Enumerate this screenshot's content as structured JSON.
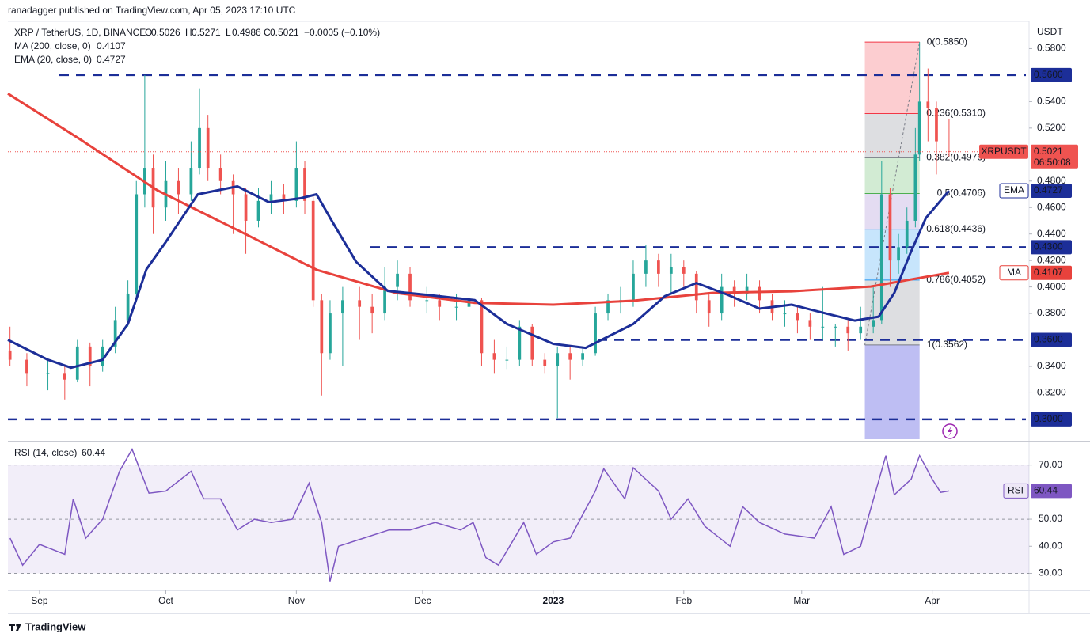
{
  "header": {
    "publisher": "ranadagger published on TradingView.com, Apr 05, 2023 17:10 UTC",
    "footer": "TradingView"
  },
  "chart_data": {
    "type": "candlestick",
    "symbol": "XRP / TetherUS, 1D, BINANCE",
    "ohlc_letters": [
      "O",
      "H",
      "L",
      "C"
    ],
    "change": "−0.0005 (−0.10%)",
    "ticker": "XRPUSDT",
    "countdown": "06:50:08",
    "y_axis_title": "USDT",
    "up_color": "#26a69a",
    "down_color": "#ef5350",
    "xlim": [
      -129.5,
      113
    ],
    "xticks": [
      {
        "value": -122,
        "label": "Sep"
      },
      {
        "value": -92,
        "label": "Oct"
      },
      {
        "value": -61,
        "label": "Nov"
      },
      {
        "value": -31,
        "label": "Dec"
      },
      {
        "value": 0,
        "label": "2023"
      },
      {
        "value": 31,
        "label": "Feb"
      },
      {
        "value": 59,
        "label": "Mar"
      },
      {
        "value": 90,
        "label": "Apr"
      }
    ],
    "ylim": [
      0.285,
      0.6
    ],
    "yticks": [
      {
        "value": 0.58,
        "label": "0.5800"
      },
      {
        "value": 0.54,
        "label": "0.5400"
      },
      {
        "value": 0.52,
        "label": "0.5200"
      },
      {
        "value": 0.48,
        "label": "0.4800"
      },
      {
        "value": 0.46,
        "label": "0.4600"
      },
      {
        "value": 0.44,
        "label": "0.4400"
      },
      {
        "value": 0.42,
        "label": "0.4200"
      },
      {
        "value": 0.4,
        "label": "0.4000"
      },
      {
        "value": 0.38,
        "label": "0.3800"
      },
      {
        "value": 0.34,
        "label": "0.3400"
      },
      {
        "value": 0.32,
        "label": "0.3200"
      }
    ],
    "candles": [
      {
        "x": -129,
        "open": 0.352,
        "high": 0.37,
        "low": 0.34,
        "close": 0.345
      },
      {
        "x": -125,
        "open": 0.345,
        "high": 0.35,
        "low": 0.325,
        "close": 0.335
      },
      {
        "x": -120,
        "open": 0.335,
        "high": 0.345,
        "low": 0.322,
        "close": 0.335
      },
      {
        "x": -116,
        "open": 0.335,
        "high": 0.34,
        "low": 0.315,
        "close": 0.33
      },
      {
        "x": -113,
        "open": 0.33,
        "high": 0.36,
        "low": 0.328,
        "close": 0.355
      },
      {
        "x": -110,
        "open": 0.355,
        "high": 0.358,
        "low": 0.325,
        "close": 0.34
      },
      {
        "x": -107,
        "open": 0.34,
        "high": 0.36,
        "low": 0.336,
        "close": 0.355
      },
      {
        "x": -104,
        "open": 0.355,
        "high": 0.385,
        "low": 0.35,
        "close": 0.375
      },
      {
        "x": -101,
        "open": 0.375,
        "high": 0.405,
        "low": 0.37,
        "close": 0.395
      },
      {
        "x": -99,
        "open": 0.395,
        "high": 0.48,
        "low": 0.39,
        "close": 0.47
      },
      {
        "x": -97,
        "open": 0.47,
        "high": 0.56,
        "low": 0.46,
        "close": 0.49
      },
      {
        "x": -95,
        "open": 0.49,
        "high": 0.5,
        "low": 0.44,
        "close": 0.46
      },
      {
        "x": -92,
        "open": 0.46,
        "high": 0.495,
        "low": 0.45,
        "close": 0.48
      },
      {
        "x": -89,
        "open": 0.48,
        "high": 0.49,
        "low": 0.455,
        "close": 0.47
      },
      {
        "x": -86,
        "open": 0.47,
        "high": 0.51,
        "low": 0.465,
        "close": 0.49
      },
      {
        "x": -84,
        "open": 0.49,
        "high": 0.55,
        "low": 0.485,
        "close": 0.52
      },
      {
        "x": -82,
        "open": 0.52,
        "high": 0.53,
        "low": 0.48,
        "close": 0.49
      },
      {
        "x": -79,
        "open": 0.49,
        "high": 0.5,
        "low": 0.47,
        "close": 0.48
      },
      {
        "x": -76,
        "open": 0.48,
        "high": 0.485,
        "low": 0.44,
        "close": 0.47
      },
      {
        "x": -73,
        "open": 0.47,
        "high": 0.475,
        "low": 0.425,
        "close": 0.45
      },
      {
        "x": -70,
        "open": 0.45,
        "high": 0.475,
        "low": 0.445,
        "close": 0.465
      },
      {
        "x": -67,
        "open": 0.465,
        "high": 0.48,
        "low": 0.455,
        "close": 0.47
      },
      {
        "x": -64,
        "open": 0.47,
        "high": 0.478,
        "low": 0.455,
        "close": 0.465
      },
      {
        "x": -61,
        "open": 0.465,
        "high": 0.51,
        "low": 0.46,
        "close": 0.49
      },
      {
        "x": -59,
        "open": 0.49,
        "high": 0.495,
        "low": 0.455,
        "close": 0.465
      },
      {
        "x": -57,
        "open": 0.465,
        "high": 0.47,
        "low": 0.385,
        "close": 0.39
      },
      {
        "x": -55,
        "open": 0.39,
        "high": 0.395,
        "low": 0.318,
        "close": 0.35
      },
      {
        "x": -53,
        "open": 0.35,
        "high": 0.39,
        "low": 0.345,
        "close": 0.38
      },
      {
        "x": -50,
        "open": 0.38,
        "high": 0.4,
        "low": 0.34,
        "close": 0.39
      },
      {
        "x": -46,
        "open": 0.39,
        "high": 0.4,
        "low": 0.36,
        "close": 0.385
      },
      {
        "x": -43,
        "open": 0.385,
        "high": 0.395,
        "low": 0.365,
        "close": 0.38
      },
      {
        "x": -40,
        "open": 0.38,
        "high": 0.415,
        "low": 0.375,
        "close": 0.4
      },
      {
        "x": -37,
        "open": 0.4,
        "high": 0.42,
        "low": 0.39,
        "close": 0.41
      },
      {
        "x": -34,
        "open": 0.41,
        "high": 0.415,
        "low": 0.385,
        "close": 0.39
      },
      {
        "x": -30,
        "open": 0.39,
        "high": 0.4,
        "low": 0.38,
        "close": 0.39
      },
      {
        "x": -27,
        "open": 0.39,
        "high": 0.395,
        "low": 0.375,
        "close": 0.385
      },
      {
        "x": -23,
        "open": 0.385,
        "high": 0.395,
        "low": 0.375,
        "close": 0.385
      },
      {
        "x": -20,
        "open": 0.385,
        "high": 0.398,
        "low": 0.38,
        "close": 0.39
      },
      {
        "x": -17,
        "open": 0.39,
        "high": 0.392,
        "low": 0.34,
        "close": 0.35
      },
      {
        "x": -14,
        "open": 0.35,
        "high": 0.36,
        "low": 0.335,
        "close": 0.345
      },
      {
        "x": -11,
        "open": 0.345,
        "high": 0.355,
        "low": 0.338,
        "close": 0.345
      },
      {
        "x": -8,
        "open": 0.345,
        "high": 0.375,
        "low": 0.34,
        "close": 0.37
      },
      {
        "x": -5,
        "open": 0.37,
        "high": 0.372,
        "low": 0.34,
        "close": 0.345
      },
      {
        "x": -2,
        "open": 0.345,
        "high": 0.35,
        "low": 0.335,
        "close": 0.34
      },
      {
        "x": 1,
        "open": 0.34,
        "high": 0.355,
        "low": 0.301,
        "close": 0.35
      },
      {
        "x": 4,
        "open": 0.35,
        "high": 0.355,
        "low": 0.33,
        "close": 0.345
      },
      {
        "x": 7,
        "open": 0.345,
        "high": 0.355,
        "low": 0.34,
        "close": 0.35
      },
      {
        "x": 10,
        "open": 0.35,
        "high": 0.385,
        "low": 0.348,
        "close": 0.38
      },
      {
        "x": 13,
        "open": 0.38,
        "high": 0.395,
        "low": 0.375,
        "close": 0.39
      },
      {
        "x": 16,
        "open": 0.39,
        "high": 0.4,
        "low": 0.38,
        "close": 0.39
      },
      {
        "x": 19,
        "open": 0.39,
        "high": 0.42,
        "low": 0.385,
        "close": 0.41
      },
      {
        "x": 22,
        "open": 0.41,
        "high": 0.432,
        "low": 0.4,
        "close": 0.42
      },
      {
        "x": 25,
        "open": 0.42,
        "high": 0.425,
        "low": 0.4,
        "close": 0.41
      },
      {
        "x": 28,
        "open": 0.41,
        "high": 0.425,
        "low": 0.395,
        "close": 0.415
      },
      {
        "x": 31,
        "open": 0.415,
        "high": 0.42,
        "low": 0.4,
        "close": 0.41
      },
      {
        "x": 34,
        "open": 0.41,
        "high": 0.412,
        "low": 0.38,
        "close": 0.39
      },
      {
        "x": 37,
        "open": 0.39,
        "high": 0.395,
        "low": 0.37,
        "close": 0.38
      },
      {
        "x": 40,
        "open": 0.38,
        "high": 0.41,
        "low": 0.375,
        "close": 0.4
      },
      {
        "x": 43,
        "open": 0.4,
        "high": 0.405,
        "low": 0.385,
        "close": 0.395
      },
      {
        "x": 46,
        "open": 0.395,
        "high": 0.41,
        "low": 0.39,
        "close": 0.4
      },
      {
        "x": 49,
        "open": 0.4,
        "high": 0.405,
        "low": 0.38,
        "close": 0.39
      },
      {
        "x": 52,
        "open": 0.39,
        "high": 0.395,
        "low": 0.375,
        "close": 0.38
      },
      {
        "x": 55,
        "open": 0.38,
        "high": 0.39,
        "low": 0.37,
        "close": 0.38
      },
      {
        "x": 58,
        "open": 0.38,
        "high": 0.385,
        "low": 0.365,
        "close": 0.375
      },
      {
        "x": 61,
        "open": 0.375,
        "high": 0.38,
        "low": 0.36,
        "close": 0.37
      },
      {
        "x": 64,
        "open": 0.37,
        "high": 0.4,
        "low": 0.36,
        "close": 0.37
      },
      {
        "x": 67,
        "open": 0.37,
        "high": 0.372,
        "low": 0.355,
        "close": 0.37
      },
      {
        "x": 70,
        "open": 0.37,
        "high": 0.375,
        "low": 0.352,
        "close": 0.365
      },
      {
        "x": 73,
        "open": 0.365,
        "high": 0.385,
        "low": 0.36,
        "close": 0.37
      },
      {
        "x": 76,
        "open": 0.37,
        "high": 0.4,
        "low": 0.365,
        "close": 0.375
      },
      {
        "x": 78,
        "open": 0.375,
        "high": 0.495,
        "low": 0.372,
        "close": 0.47
      },
      {
        "x": 80,
        "open": 0.47,
        "high": 0.475,
        "low": 0.4,
        "close": 0.42
      },
      {
        "x": 82,
        "open": 0.42,
        "high": 0.44,
        "low": 0.41,
        "close": 0.43
      },
      {
        "x": 84,
        "open": 0.43,
        "high": 0.46,
        "low": 0.425,
        "close": 0.45
      },
      {
        "x": 86,
        "open": 0.45,
        "high": 0.52,
        "low": 0.445,
        "close": 0.5
      },
      {
        "x": 87,
        "open": 0.5,
        "high": 0.585,
        "low": 0.495,
        "close": 0.54
      },
      {
        "x": 89,
        "open": 0.54,
        "high": 0.565,
        "low": 0.51,
        "close": 0.535
      },
      {
        "x": 91,
        "open": 0.535,
        "high": 0.54,
        "low": 0.485,
        "close": 0.51
      },
      {
        "x": 94,
        "open": 0.5026,
        "high": 0.5271,
        "low": 0.4986,
        "close": 0.5021
      }
    ],
    "overlays": [
      {
        "name": "MA",
        "legend": "MA (200, close, 0)",
        "color": "#e8423c",
        "x": [
          -129.5,
          -112.6,
          -94,
          -75,
          -56.2,
          -37.4,
          -18.6,
          0,
          19,
          37.8,
          56.6,
          75.4,
          94
        ],
        "values": [
          0.546,
          0.512,
          0.473,
          0.443,
          0.413,
          0.3955,
          0.388,
          0.3866,
          0.3896,
          0.3955,
          0.3967,
          0.4003,
          0.4107
        ]
      },
      {
        "name": "EMA",
        "legend": "EMA (20, close, 0)",
        "color": "#1c2e98",
        "x": [
          -129.5,
          -120,
          -114.5,
          -107,
          -101,
          -96.6,
          -92,
          -84.4,
          -75,
          -67.5,
          -60,
          -56.2,
          -52.4,
          -46.8,
          -39.3,
          -29.9,
          -18.6,
          -11,
          0,
          7.7,
          19,
          26.5,
          34,
          41.5,
          49,
          56.6,
          64,
          71.6,
          77.3,
          81,
          84.8,
          88.5,
          94
        ],
        "values": [
          0.36,
          0.345,
          0.339,
          0.345,
          0.372,
          0.4134,
          0.434,
          0.47,
          0.476,
          0.464,
          0.467,
          0.47,
          0.449,
          0.419,
          0.397,
          0.394,
          0.39,
          0.372,
          0.357,
          0.354,
          0.372,
          0.393,
          0.403,
          0.394,
          0.3836,
          0.3866,
          0.3806,
          0.3746,
          0.3776,
          0.3955,
          0.4254,
          0.4522,
          0.4727
        ]
      }
    ],
    "levels": {
      "color": "#1c2e98",
      "values": [
        {
          "value": 0.56,
          "label": "0.5600"
        },
        {
          "value": 0.43,
          "label": "0.4300"
        },
        {
          "value": 0.36,
          "label": "0.3600"
        },
        {
          "value": 0.3,
          "label": "0.3000"
        }
      ]
    },
    "fibonacci": {
      "x": [
        74,
        87
      ],
      "levels": [
        {
          "value": 0.585,
          "label": "0(0.5850)"
        },
        {
          "value": 0.531,
          "label": "0.236(0.5310)"
        },
        {
          "value": 0.4976,
          "label": "0.382(0.4976)"
        },
        {
          "value": 0.4706,
          "label": "0.5(0.4706)"
        },
        {
          "value": 0.4436,
          "label": "0.618(0.4436)"
        },
        {
          "value": 0.4052,
          "label": "0.786(0.4052)"
        },
        {
          "value": 0.3562,
          "label": "1(0.3562)"
        }
      ],
      "colors": [
        "#f23645",
        "#787b86",
        "#4caf50",
        "#9575cd",
        "#2196f3",
        "#787b86",
        "#5c5ce0"
      ]
    },
    "rsi": {
      "type": "line",
      "name": "RSI",
      "legend": "RSI (14, close)",
      "color": "#7e57c2",
      "ylim": [
        24,
        77.5
      ],
      "yticks": [
        {
          "value": 70,
          "label": "70.00"
        },
        {
          "value": 50,
          "label": "50.00"
        },
        {
          "value": 40,
          "label": "40.00"
        },
        {
          "value": 30,
          "label": "30.00"
        }
      ],
      "guides": [
        70,
        50,
        30
      ],
      "x": [
        -129,
        -126,
        -122,
        -116,
        -114,
        -111,
        -107,
        -103,
        -100,
        -96,
        -92,
        -86,
        -83,
        -79,
        -75,
        -71,
        -67,
        -62,
        -58,
        -55,
        -53,
        -51,
        -45,
        -39,
        -34,
        -28,
        -22,
        -19,
        -16,
        -13,
        -7,
        -4,
        0,
        4,
        10,
        12,
        17,
        19,
        25,
        28,
        32,
        36,
        42,
        45,
        49,
        55,
        62,
        66,
        69,
        73,
        75,
        79,
        81,
        85,
        87,
        90,
        92,
        94
      ],
      "values": [
        43,
        33,
        40.7,
        37,
        57.5,
        43,
        50,
        67.7,
        75.8,
        59.6,
        60.4,
        67.7,
        57.5,
        57.5,
        46,
        50,
        48.8,
        50,
        63.3,
        48.8,
        27,
        40,
        43,
        46,
        46,
        48.8,
        46,
        48.8,
        35.8,
        33,
        48.8,
        37,
        41.6,
        43,
        60.4,
        68.6,
        57.5,
        69,
        60.4,
        50,
        57.5,
        47.4,
        40,
        54.6,
        48.8,
        44.5,
        43,
        54.6,
        37,
        40,
        51.7,
        73.5,
        59,
        64.8,
        73.5,
        64.8,
        59.9,
        60.44
      ]
    }
  }
}
